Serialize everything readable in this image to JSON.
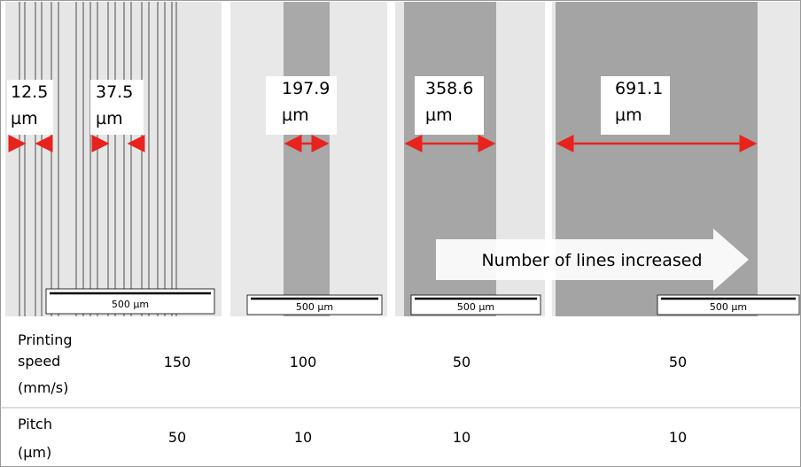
{
  "width_labels": [
    {
      "value": "12.5",
      "unit": "µm"
    },
    {
      "value": "37.5",
      "unit": "µm"
    },
    {
      "value": "197.9",
      "unit": "µm"
    },
    {
      "value": "358.6",
      "unit": "µm"
    },
    {
      "value": "691.1",
      "unit": "µm"
    }
  ],
  "scale_bars": [
    "500 µm",
    "500 µm",
    "500 µm",
    "500 µm"
  ],
  "arrow_text": "Number of lines increased",
  "table": {
    "rows": [
      {
        "label": [
          "Printing",
          "speed",
          "(mm/s)"
        ],
        "values": [
          "150",
          "100",
          "50",
          "50"
        ]
      },
      {
        "label": [
          "Pitch",
          "(µm)"
        ],
        "values": [
          "50",
          "10",
          "10",
          "10"
        ]
      }
    ]
  }
}
